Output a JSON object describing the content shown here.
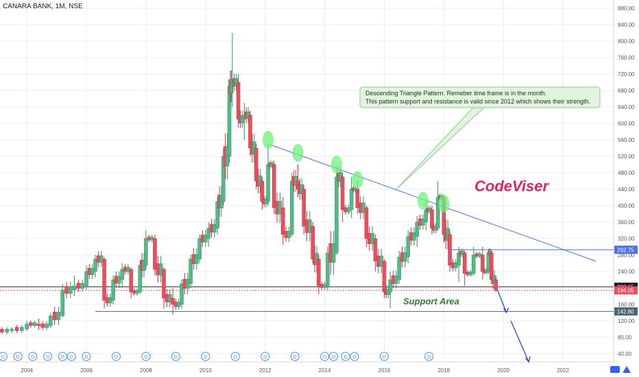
{
  "header": {
    "title": "CANARA BANK, 1M, NSE"
  },
  "colors": {
    "up": "#53b987",
    "down": "#eb4d5c",
    "trendline": "#4c6ee6",
    "highlight": "#6ef07a",
    "annotation_bg": "#e2f3e0",
    "annotation_border": "#8ec88e",
    "brand": "#e0245e",
    "support_text": "#2e7d32",
    "support_line": "#4a6470",
    "axis_text": "#4f5966",
    "grid": "#e9edf2"
  },
  "chart_data": {
    "type": "candlestick",
    "title": "CANARA BANK, 1M, NSE",
    "xlim": [
      2003.1,
      2023.7
    ],
    "ylim": [
      20,
      900
    ],
    "y_ticks": [
      40,
      80,
      120,
      160,
      200,
      240,
      280,
      320,
      360,
      400,
      440,
      480,
      520,
      560,
      600,
      640,
      680,
      720,
      760,
      800,
      840,
      880
    ],
    "x_ticks": [
      2004,
      2006,
      2008,
      2010,
      2012,
      2014,
      2016,
      2018,
      2020,
      2022
    ],
    "grid": true,
    "legend": "none",
    "series": [
      {
        "t": 2003.0,
        "o": 92,
        "h": 103,
        "l": 85,
        "c": 96
      },
      {
        "t": 2003.5,
        "o": 96,
        "h": 104,
        "l": 90,
        "c": 100
      },
      {
        "t": 2004.0,
        "o": 100,
        "h": 120,
        "l": 95,
        "c": 112
      },
      {
        "t": 2004.4,
        "o": 112,
        "h": 125,
        "l": 98,
        "c": 108
      },
      {
        "t": 2004.8,
        "o": 108,
        "h": 140,
        "l": 103,
        "c": 132
      },
      {
        "t": 2005.2,
        "o": 132,
        "h": 210,
        "l": 128,
        "c": 195
      },
      {
        "t": 2005.6,
        "o": 195,
        "h": 230,
        "l": 180,
        "c": 205
      },
      {
        "t": 2006.0,
        "o": 205,
        "h": 255,
        "l": 195,
        "c": 240
      },
      {
        "t": 2006.3,
        "o": 240,
        "h": 280,
        "l": 225,
        "c": 270
      },
      {
        "t": 2006.6,
        "o": 270,
        "h": 275,
        "l": 150,
        "c": 170
      },
      {
        "t": 2006.9,
        "o": 170,
        "h": 230,
        "l": 160,
        "c": 220
      },
      {
        "t": 2007.2,
        "o": 220,
        "h": 260,
        "l": 200,
        "c": 245
      },
      {
        "t": 2007.5,
        "o": 245,
        "h": 250,
        "l": 175,
        "c": 190
      },
      {
        "t": 2007.8,
        "o": 190,
        "h": 265,
        "l": 185,
        "c": 255
      },
      {
        "t": 2008.0,
        "o": 255,
        "h": 340,
        "l": 245,
        "c": 320
      },
      {
        "t": 2008.3,
        "o": 320,
        "h": 330,
        "l": 230,
        "c": 245
      },
      {
        "t": 2008.6,
        "o": 245,
        "h": 250,
        "l": 150,
        "c": 175
      },
      {
        "t": 2008.9,
        "o": 175,
        "h": 200,
        "l": 135,
        "c": 160
      },
      {
        "t": 2009.2,
        "o": 160,
        "h": 220,
        "l": 150,
        "c": 210
      },
      {
        "t": 2009.5,
        "o": 210,
        "h": 280,
        "l": 200,
        "c": 270
      },
      {
        "t": 2009.8,
        "o": 270,
        "h": 330,
        "l": 260,
        "c": 320
      },
      {
        "t": 2010.1,
        "o": 320,
        "h": 360,
        "l": 300,
        "c": 345
      },
      {
        "t": 2010.4,
        "o": 345,
        "h": 420,
        "l": 330,
        "c": 410
      },
      {
        "t": 2010.6,
        "o": 410,
        "h": 540,
        "l": 400,
        "c": 520
      },
      {
        "t": 2010.8,
        "o": 520,
        "h": 700,
        "l": 505,
        "c": 690
      },
      {
        "t": 2010.9,
        "o": 690,
        "h": 820,
        "l": 640,
        "c": 700
      },
      {
        "t": 2011.1,
        "o": 700,
        "h": 720,
        "l": 590,
        "c": 610
      },
      {
        "t": 2011.3,
        "o": 610,
        "h": 650,
        "l": 560,
        "c": 620
      },
      {
        "t": 2011.5,
        "o": 620,
        "h": 630,
        "l": 520,
        "c": 540
      },
      {
        "t": 2011.7,
        "o": 540,
        "h": 550,
        "l": 440,
        "c": 460
      },
      {
        "t": 2011.9,
        "o": 460,
        "h": 470,
        "l": 390,
        "c": 410
      },
      {
        "t": 2012.1,
        "o": 410,
        "h": 550,
        "l": 400,
        "c": 500
      },
      {
        "t": 2012.3,
        "o": 500,
        "h": 510,
        "l": 380,
        "c": 395
      },
      {
        "t": 2012.6,
        "o": 395,
        "h": 420,
        "l": 305,
        "c": 330
      },
      {
        "t": 2012.9,
        "o": 330,
        "h": 480,
        "l": 325,
        "c": 460
      },
      {
        "t": 2013.1,
        "o": 460,
        "h": 500,
        "l": 420,
        "c": 440
      },
      {
        "t": 2013.3,
        "o": 440,
        "h": 450,
        "l": 330,
        "c": 350
      },
      {
        "t": 2013.6,
        "o": 350,
        "h": 360,
        "l": 260,
        "c": 270
      },
      {
        "t": 2013.8,
        "o": 270,
        "h": 280,
        "l": 185,
        "c": 205
      },
      {
        "t": 2014.1,
        "o": 205,
        "h": 300,
        "l": 195,
        "c": 285
      },
      {
        "t": 2014.4,
        "o": 285,
        "h": 495,
        "l": 280,
        "c": 470
      },
      {
        "t": 2014.6,
        "o": 470,
        "h": 480,
        "l": 360,
        "c": 390
      },
      {
        "t": 2014.9,
        "o": 390,
        "h": 470,
        "l": 370,
        "c": 440
      },
      {
        "t": 2015.1,
        "o": 440,
        "h": 460,
        "l": 380,
        "c": 395
      },
      {
        "t": 2015.4,
        "o": 395,
        "h": 400,
        "l": 300,
        "c": 320
      },
      {
        "t": 2015.7,
        "o": 320,
        "h": 330,
        "l": 240,
        "c": 265
      },
      {
        "t": 2016.0,
        "o": 265,
        "h": 270,
        "l": 175,
        "c": 190
      },
      {
        "t": 2016.2,
        "o": 190,
        "h": 240,
        "l": 150,
        "c": 220
      },
      {
        "t": 2016.5,
        "o": 220,
        "h": 290,
        "l": 210,
        "c": 275
      },
      {
        "t": 2016.8,
        "o": 275,
        "h": 340,
        "l": 260,
        "c": 325
      },
      {
        "t": 2017.1,
        "o": 325,
        "h": 375,
        "l": 300,
        "c": 360
      },
      {
        "t": 2017.4,
        "o": 360,
        "h": 410,
        "l": 340,
        "c": 390
      },
      {
        "t": 2017.6,
        "o": 390,
        "h": 400,
        "l": 330,
        "c": 345
      },
      {
        "t": 2017.8,
        "o": 345,
        "h": 460,
        "l": 340,
        "c": 420
      },
      {
        "t": 2018.0,
        "o": 420,
        "h": 425,
        "l": 310,
        "c": 330
      },
      {
        "t": 2018.2,
        "o": 330,
        "h": 340,
        "l": 240,
        "c": 255
      },
      {
        "t": 2018.5,
        "o": 255,
        "h": 300,
        "l": 215,
        "c": 285
      },
      {
        "t": 2018.7,
        "o": 285,
        "h": 290,
        "l": 205,
        "c": 235
      },
      {
        "t": 2019.0,
        "o": 235,
        "h": 300,
        "l": 230,
        "c": 280
      },
      {
        "t": 2019.3,
        "o": 280,
        "h": 300,
        "l": 220,
        "c": 240
      },
      {
        "t": 2019.5,
        "o": 240,
        "h": 295,
        "l": 235,
        "c": 285
      },
      {
        "t": 2019.6,
        "o": 285,
        "h": 290,
        "l": 215,
        "c": 220
      },
      {
        "t": 2019.75,
        "o": 220,
        "h": 225,
        "l": 190,
        "c": 194
      }
    ],
    "trendline": {
      "from": [
        2012.1,
        550
      ],
      "to": [
        2023.1,
        265
      ]
    },
    "resistance": {
      "value": 292.75,
      "from": 2018.25
    },
    "support_line": {
      "value": 142.8,
      "from": 2006.3
    },
    "level_lines": [
      202.65,
      194.05
    ],
    "price_labels": [
      {
        "value": 292.75,
        "text": "292.75",
        "color": "#4c6ee6"
      },
      {
        "value": 202.65,
        "text": "202.65",
        "color": "#131722"
      },
      {
        "value": 194.05,
        "text": "194.05",
        "color": "#eb4d5c"
      },
      {
        "value": 142.8,
        "text": "142.80",
        "color": "#4a6470"
      }
    ],
    "highlight_points": [
      [
        2012.1,
        560
      ],
      [
        2013.1,
        528
      ],
      [
        2014.4,
        500
      ],
      [
        2015.1,
        462
      ],
      [
        2017.3,
        412
      ],
      [
        2018.0,
        405
      ]
    ],
    "projection_arrow": [
      [
        2019.8,
        195
      ],
      [
        2020.1,
        140
      ],
      [
        2020.25,
        120
      ],
      [
        2020.85,
        20
      ]
    ],
    "dividend_markers": [
      2003.2,
      2003.7,
      2004.2,
      2004.7,
      2005.2,
      2005.5,
      2006.0,
      2007.0,
      2008.0,
      2009.0,
      2010.0,
      2011.0,
      2012.0,
      2013.0,
      2014.0,
      2014.3,
      2014.7,
      2015.0,
      2016.0,
      2017.5
    ],
    "annotations": {
      "note_line1": "Descending Triangle Pattern.  Remeber time frame is in the month.",
      "note_line2": "This pattern support and resistance is valid since 2012 which shows their strength.",
      "support_label": "Support Area",
      "brand": "CodeViser",
      "marker_letter": "D"
    }
  }
}
